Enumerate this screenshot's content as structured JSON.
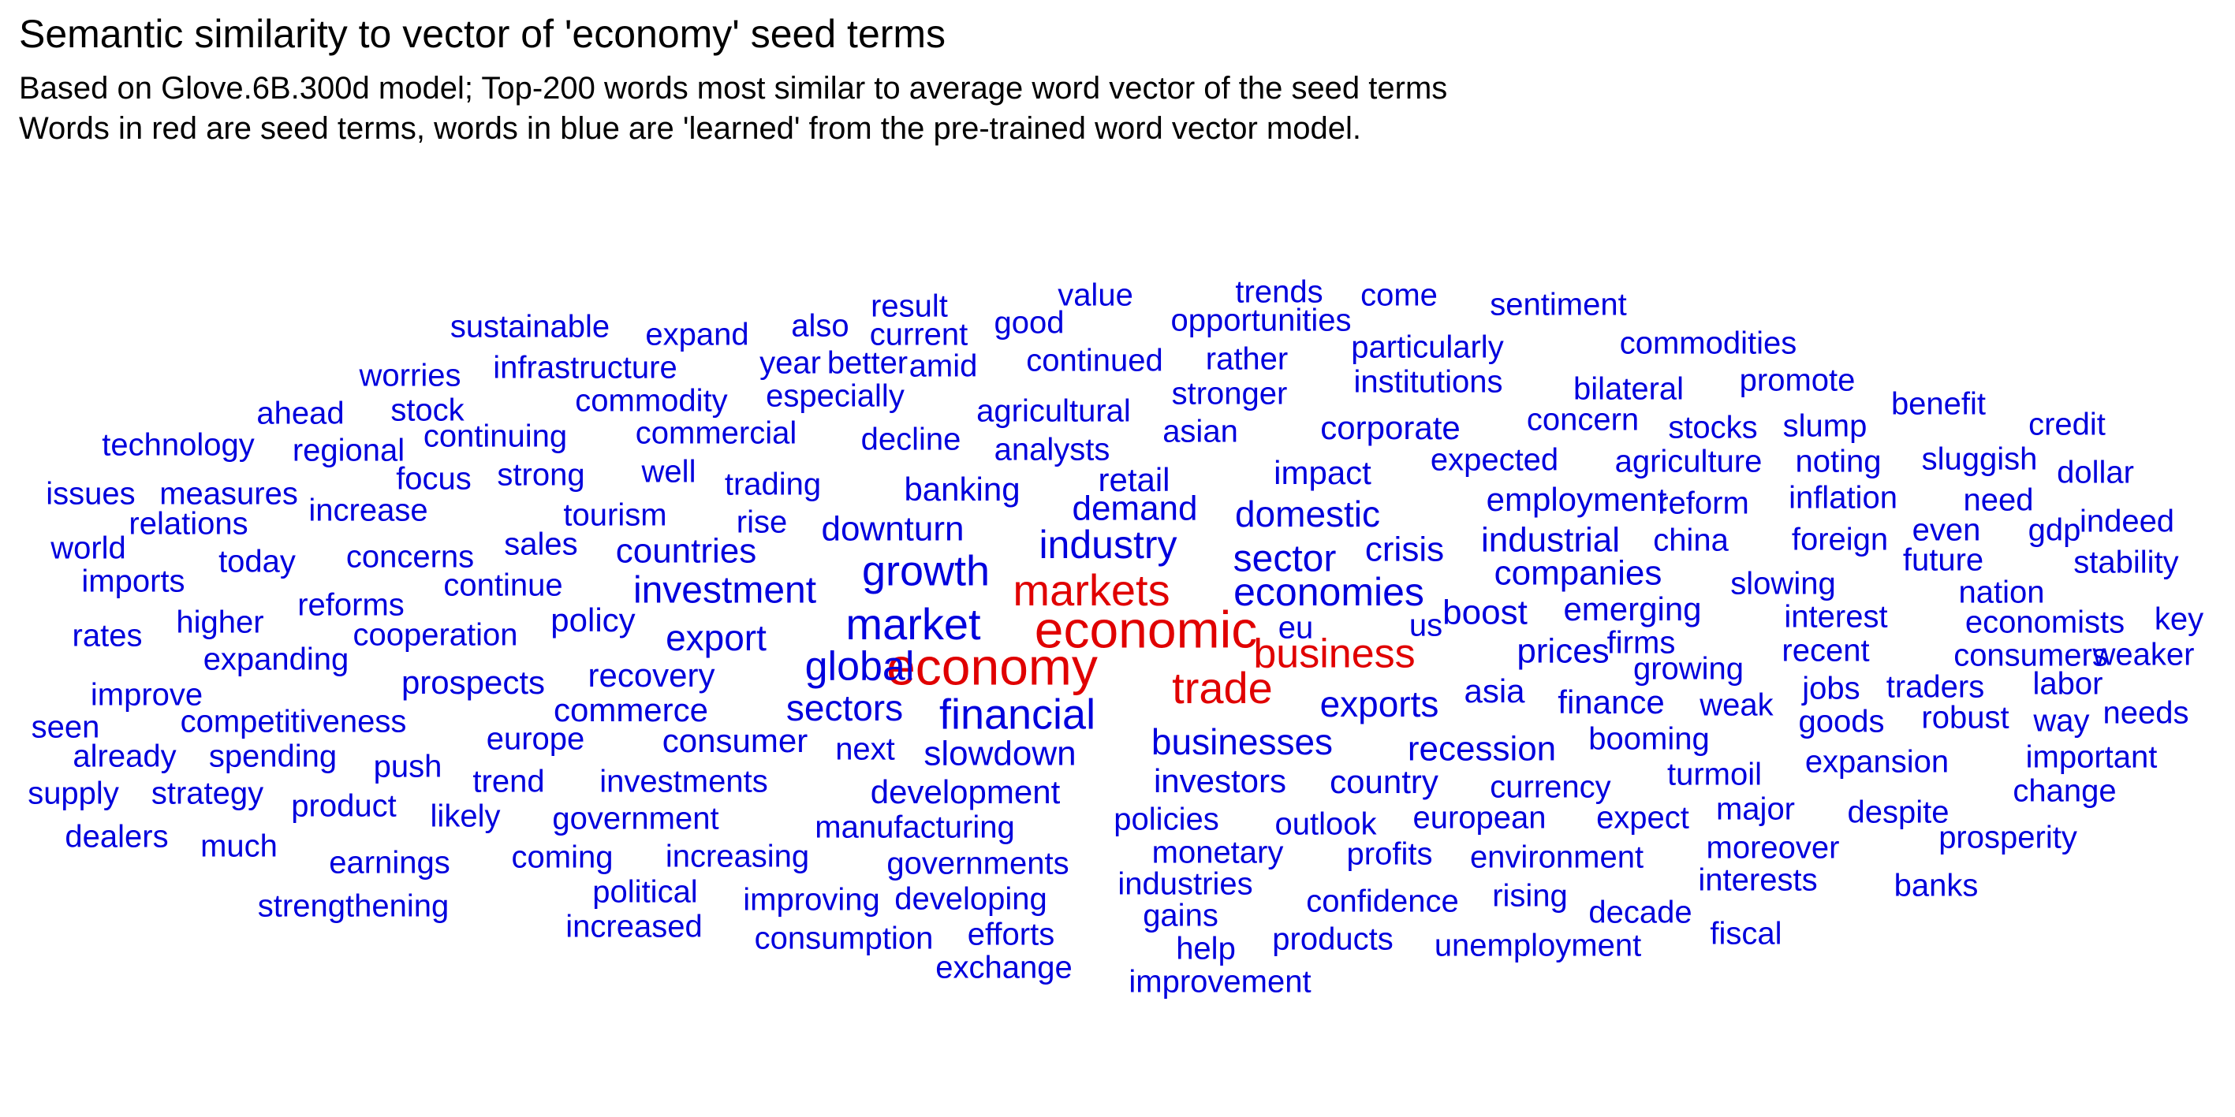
{
  "chart_data": {
    "type": "word_cloud",
    "title": "Semantic similarity to vector of 'economy' seed terms",
    "subtitle": [
      "Based on Glove.6B.300d model; Top-200 words most similar to average word vector of the seed terms",
      "Words in red are seed terms, words in blue are 'learned' from the pre-trained word vector model."
    ],
    "colors": {
      "seed": "#e00000",
      "learned": "#0000dd",
      "text": "#000000"
    },
    "words": [
      {
        "text": "economy",
        "group": "seed"
      },
      {
        "text": "economic",
        "group": "seed"
      },
      {
        "text": "markets",
        "group": "seed"
      },
      {
        "text": "trade",
        "group": "seed"
      },
      {
        "text": "business",
        "group": "seed"
      },
      {
        "text": "market",
        "group": "learned"
      },
      {
        "text": "financial",
        "group": "learned"
      },
      {
        "text": "growth",
        "group": "learned"
      },
      {
        "text": "economies",
        "group": "learned"
      },
      {
        "text": "global",
        "group": "learned"
      },
      {
        "text": "sector",
        "group": "learned"
      },
      {
        "text": "industry",
        "group": "learned"
      },
      {
        "text": "investment",
        "group": "learned"
      },
      {
        "text": "businesses",
        "group": "learned"
      },
      {
        "text": "sectors",
        "group": "learned"
      },
      {
        "text": "exports",
        "group": "learned"
      },
      {
        "text": "export",
        "group": "learned"
      },
      {
        "text": "domestic",
        "group": "learned"
      },
      {
        "text": "demand",
        "group": "learned"
      },
      {
        "text": "crisis",
        "group": "learned"
      },
      {
        "text": "recession",
        "group": "learned"
      },
      {
        "text": "slowdown",
        "group": "learned"
      },
      {
        "text": "development",
        "group": "learned"
      },
      {
        "text": "investors",
        "group": "learned"
      },
      {
        "text": "companies",
        "group": "learned"
      },
      {
        "text": "industrial",
        "group": "learned"
      },
      {
        "text": "prices",
        "group": "learned"
      },
      {
        "text": "downturn",
        "group": "learned"
      },
      {
        "text": "countries",
        "group": "learned"
      },
      {
        "text": "boost",
        "group": "learned"
      },
      {
        "text": "asia",
        "group": "learned"
      },
      {
        "text": "emerging",
        "group": "learned"
      },
      {
        "text": "recovery",
        "group": "learned"
      },
      {
        "text": "commerce",
        "group": "learned"
      },
      {
        "text": "consumer",
        "group": "learned"
      },
      {
        "text": "impact",
        "group": "learned"
      },
      {
        "text": "banking",
        "group": "learned"
      },
      {
        "text": "policy",
        "group": "learned"
      },
      {
        "text": "finance",
        "group": "learned"
      },
      {
        "text": "country",
        "group": "learned"
      },
      {
        "text": "investments",
        "group": "learned"
      },
      {
        "text": "retail",
        "group": "learned"
      },
      {
        "text": "prospects",
        "group": "learned"
      },
      {
        "text": "employment",
        "group": "learned"
      },
      {
        "text": "corporate",
        "group": "learned"
      },
      {
        "text": "firms",
        "group": "learned"
      },
      {
        "text": "booming",
        "group": "learned"
      },
      {
        "text": "currency",
        "group": "learned"
      },
      {
        "text": "growing",
        "group": "learned"
      },
      {
        "text": "manufacturing",
        "group": "learned"
      },
      {
        "text": "trading",
        "group": "learned"
      },
      {
        "text": "policies",
        "group": "learned"
      },
      {
        "text": "weak",
        "group": "learned"
      },
      {
        "text": "cooperation",
        "group": "learned"
      },
      {
        "text": "analysts",
        "group": "learned"
      },
      {
        "text": "tourism",
        "group": "learned"
      },
      {
        "text": "expected",
        "group": "learned"
      },
      {
        "text": "agricultural",
        "group": "learned"
      },
      {
        "text": "continue",
        "group": "learned"
      },
      {
        "text": "decline",
        "group": "learned"
      },
      {
        "text": "rise",
        "group": "learned"
      },
      {
        "text": "commercial",
        "group": "learned"
      },
      {
        "text": "reforms",
        "group": "learned"
      },
      {
        "text": "concerns",
        "group": "learned"
      },
      {
        "text": "sales",
        "group": "learned"
      },
      {
        "text": "europe",
        "group": "learned"
      },
      {
        "text": "outlook",
        "group": "learned"
      },
      {
        "text": "trend",
        "group": "learned"
      },
      {
        "text": "turmoil",
        "group": "learned"
      },
      {
        "text": "european",
        "group": "learned"
      },
      {
        "text": "china",
        "group": "learned"
      },
      {
        "text": "reform",
        "group": "learned"
      },
      {
        "text": "agriculture",
        "group": "learned"
      },
      {
        "text": "slowing",
        "group": "learned"
      },
      {
        "text": "government",
        "group": "learned"
      },
      {
        "text": "monetary",
        "group": "learned"
      },
      {
        "text": "increasing",
        "group": "learned"
      },
      {
        "text": "governments",
        "group": "learned"
      },
      {
        "text": "strong",
        "group": "learned"
      },
      {
        "text": "competitiveness",
        "group": "learned"
      },
      {
        "text": "infrastructure",
        "group": "learned"
      },
      {
        "text": "commodity",
        "group": "learned"
      },
      {
        "text": "continuing",
        "group": "learned"
      },
      {
        "text": "stronger",
        "group": "learned"
      },
      {
        "text": "asian",
        "group": "learned"
      },
      {
        "text": "institutions",
        "group": "learned"
      },
      {
        "text": "concern",
        "group": "learned"
      },
      {
        "text": "stocks",
        "group": "learned"
      },
      {
        "text": "expect",
        "group": "learned"
      },
      {
        "text": "environment",
        "group": "learned"
      },
      {
        "text": "industries",
        "group": "learned"
      },
      {
        "text": "confidence",
        "group": "learned"
      },
      {
        "text": "developing",
        "group": "learned"
      },
      {
        "text": "improving",
        "group": "learned"
      },
      {
        "text": "consumption",
        "group": "learned"
      },
      {
        "text": "continued",
        "group": "learned"
      },
      {
        "text": "especially",
        "group": "learned"
      },
      {
        "text": "well",
        "group": "learned"
      },
      {
        "text": "focus",
        "group": "learned"
      },
      {
        "text": "increase",
        "group": "learned"
      },
      {
        "text": "interest",
        "group": "learned"
      },
      {
        "text": "recent",
        "group": "learned"
      },
      {
        "text": "inflation",
        "group": "learned"
      },
      {
        "text": "foreign",
        "group": "learned"
      },
      {
        "text": "jobs",
        "group": "learned"
      },
      {
        "text": "goods",
        "group": "learned"
      },
      {
        "text": "expansion",
        "group": "learned"
      },
      {
        "text": "economists",
        "group": "learned"
      },
      {
        "text": "consumers",
        "group": "learned"
      },
      {
        "text": "traders",
        "group": "learned"
      },
      {
        "text": "robust",
        "group": "learned"
      },
      {
        "text": "major",
        "group": "learned"
      },
      {
        "text": "moreover",
        "group": "learned"
      },
      {
        "text": "interests",
        "group": "learned"
      },
      {
        "text": "despite",
        "group": "learned"
      },
      {
        "text": "prosperity",
        "group": "learned"
      },
      {
        "text": "profits",
        "group": "learned"
      },
      {
        "text": "rising",
        "group": "learned"
      },
      {
        "text": "decade",
        "group": "learned"
      },
      {
        "text": "unemployment",
        "group": "learned"
      },
      {
        "text": "products",
        "group": "learned"
      },
      {
        "text": "gains",
        "group": "learned"
      },
      {
        "text": "help",
        "group": "learned"
      },
      {
        "text": "improvement",
        "group": "learned"
      },
      {
        "text": "efforts",
        "group": "learned"
      },
      {
        "text": "exchange",
        "group": "learned"
      },
      {
        "text": "political",
        "group": "learned"
      },
      {
        "text": "increased",
        "group": "learned"
      },
      {
        "text": "coming",
        "group": "learned"
      },
      {
        "text": "earnings",
        "group": "learned"
      },
      {
        "text": "strengthening",
        "group": "learned"
      },
      {
        "text": "likely",
        "group": "learned"
      },
      {
        "text": "push",
        "group": "learned"
      },
      {
        "text": "product",
        "group": "learned"
      },
      {
        "text": "spending",
        "group": "learned"
      },
      {
        "text": "strategy",
        "group": "learned"
      },
      {
        "text": "much",
        "group": "learned"
      },
      {
        "text": "dealers",
        "group": "learned"
      },
      {
        "text": "supply",
        "group": "learned"
      },
      {
        "text": "already",
        "group": "learned"
      },
      {
        "text": "seen",
        "group": "learned"
      },
      {
        "text": "improve",
        "group": "learned"
      },
      {
        "text": "expanding",
        "group": "learned"
      },
      {
        "text": "higher",
        "group": "learned"
      },
      {
        "text": "rates",
        "group": "learned"
      },
      {
        "text": "imports",
        "group": "learned"
      },
      {
        "text": "today",
        "group": "learned"
      },
      {
        "text": "world",
        "group": "learned"
      },
      {
        "text": "relations",
        "group": "learned"
      },
      {
        "text": "issues",
        "group": "learned"
      },
      {
        "text": "measures",
        "group": "learned"
      },
      {
        "text": "technology",
        "group": "learned"
      },
      {
        "text": "regional",
        "group": "learned"
      },
      {
        "text": "ahead",
        "group": "learned"
      },
      {
        "text": "stock",
        "group": "learned"
      },
      {
        "text": "worries",
        "group": "learned"
      },
      {
        "text": "sustainable",
        "group": "learned"
      },
      {
        "text": "expand",
        "group": "learned"
      },
      {
        "text": "year",
        "group": "learned"
      },
      {
        "text": "better",
        "group": "learned"
      },
      {
        "text": "amid",
        "group": "learned"
      },
      {
        "text": "also",
        "group": "learned"
      },
      {
        "text": "current",
        "group": "learned"
      },
      {
        "text": "result",
        "group": "learned"
      },
      {
        "text": "value",
        "group": "learned"
      },
      {
        "text": "good",
        "group": "learned"
      },
      {
        "text": "trends",
        "group": "learned"
      },
      {
        "text": "opportunities",
        "group": "learned"
      },
      {
        "text": "come",
        "group": "learned"
      },
      {
        "text": "rather",
        "group": "learned"
      },
      {
        "text": "particularly",
        "group": "learned"
      },
      {
        "text": "sentiment",
        "group": "learned"
      },
      {
        "text": "commodities",
        "group": "learned"
      },
      {
        "text": "bilateral",
        "group": "learned"
      },
      {
        "text": "promote",
        "group": "learned"
      },
      {
        "text": "benefit",
        "group": "learned"
      },
      {
        "text": "slump",
        "group": "learned"
      },
      {
        "text": "credit",
        "group": "learned"
      },
      {
        "text": "noting",
        "group": "learned"
      },
      {
        "text": "sluggish",
        "group": "learned"
      },
      {
        "text": "dollar",
        "group": "learned"
      },
      {
        "text": "need",
        "group": "learned"
      },
      {
        "text": "even",
        "group": "learned"
      },
      {
        "text": "gdp",
        "group": "learned"
      },
      {
        "text": "indeed",
        "group": "learned"
      },
      {
        "text": "future",
        "group": "learned"
      },
      {
        "text": "stability",
        "group": "learned"
      },
      {
        "text": "nation",
        "group": "learned"
      },
      {
        "text": "key",
        "group": "learned"
      },
      {
        "text": "weaker",
        "group": "learned"
      },
      {
        "text": "labor",
        "group": "learned"
      },
      {
        "text": "way",
        "group": "learned"
      },
      {
        "text": "needs",
        "group": "learned"
      },
      {
        "text": "important",
        "group": "learned"
      },
      {
        "text": "change",
        "group": "learned"
      },
      {
        "text": "banks",
        "group": "learned"
      },
      {
        "text": "fiscal",
        "group": "learned"
      },
      {
        "text": "eu",
        "group": "learned"
      },
      {
        "text": "us",
        "group": "learned"
      },
      {
        "text": "next",
        "group": "learned"
      }
    ]
  }
}
